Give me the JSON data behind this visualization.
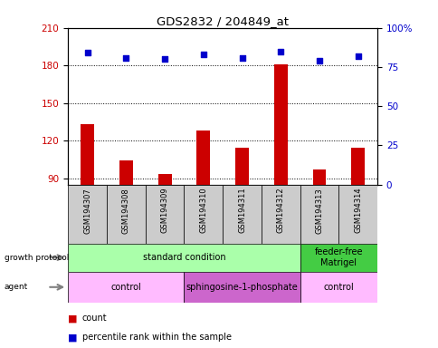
{
  "title": "GDS2832 / 204849_at",
  "samples": [
    "GSM194307",
    "GSM194308",
    "GSM194309",
    "GSM194310",
    "GSM194311",
    "GSM194312",
    "GSM194313",
    "GSM194314"
  ],
  "counts": [
    133,
    104,
    93,
    128,
    114,
    181,
    97,
    114
  ],
  "percentile_ranks": [
    84,
    81,
    80,
    83,
    81,
    85,
    79,
    82
  ],
  "ylim_left": [
    85,
    210
  ],
  "ylim_right": [
    0,
    100
  ],
  "yticks_left": [
    90,
    120,
    150,
    180,
    210
  ],
  "yticks_right": [
    0,
    25,
    50,
    75,
    100
  ],
  "bar_color": "#cc0000",
  "dot_color": "#0000cc",
  "bar_width": 0.35,
  "growth_protocol_groups": [
    {
      "label": "standard condition",
      "start": 0,
      "end": 6,
      "color": "#aaffaa"
    },
    {
      "label": "feeder-free\nMatrigel",
      "start": 6,
      "end": 8,
      "color": "#44cc44"
    }
  ],
  "agent_groups": [
    {
      "label": "control",
      "start": 0,
      "end": 3,
      "color": "#ffbbff"
    },
    {
      "label": "sphingosine-1-phosphate",
      "start": 3,
      "end": 6,
      "color": "#cc66cc"
    },
    {
      "label": "control",
      "start": 6,
      "end": 8,
      "color": "#ffbbff"
    }
  ],
  "left_label_color": "#cc0000",
  "right_label_color": "#0000cc",
  "grid_color": "#555555",
  "xlabel_bg_color": "#cccccc",
  "figure_bg": "#ffffff"
}
